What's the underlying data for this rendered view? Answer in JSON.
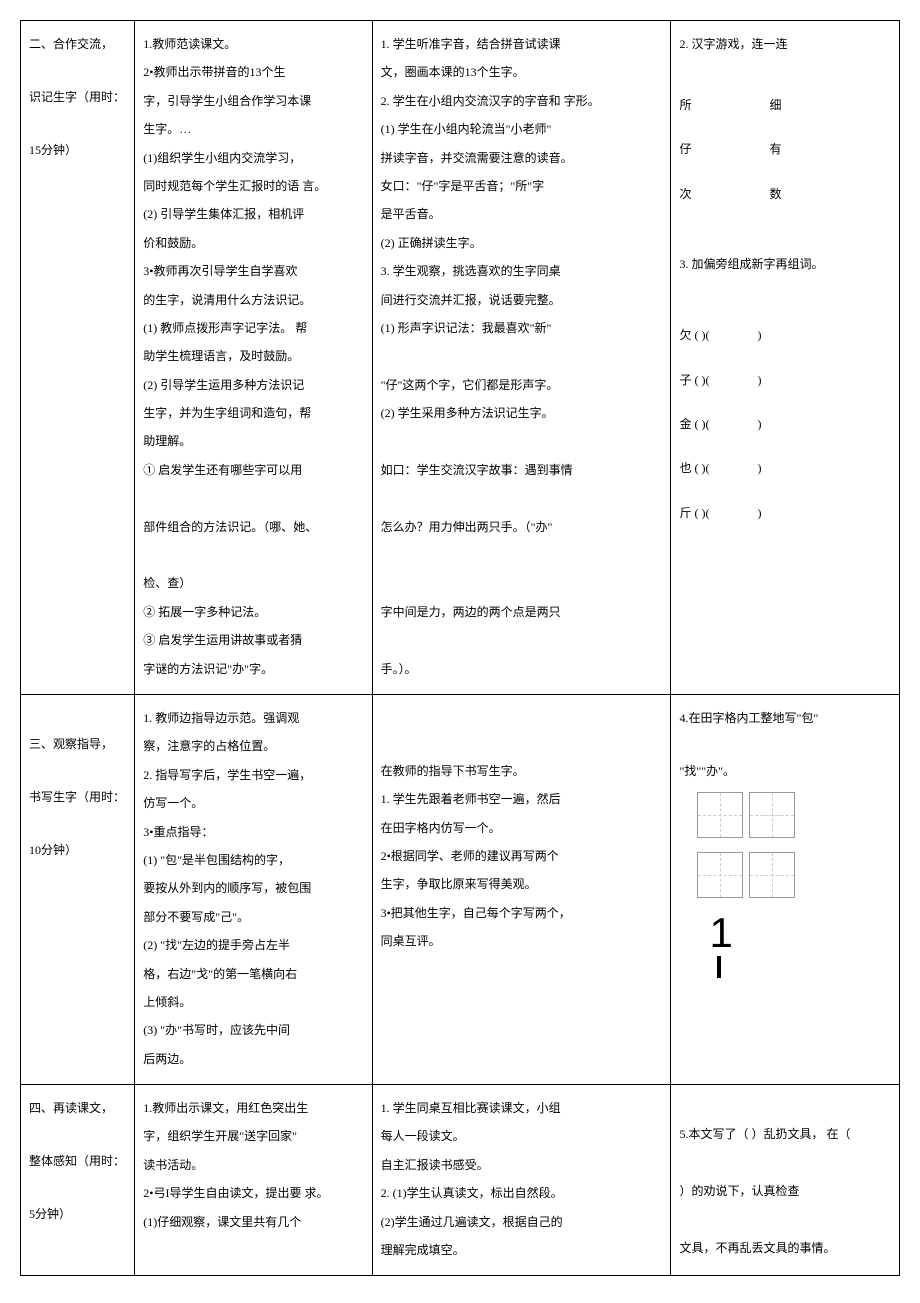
{
  "row1": {
    "col1_l1": "二、合作交流，",
    "col1_l2": "识记生字（用时：",
    "col1_l3": "15分钟）",
    "col2": [
      "1.教师范读课文。",
      "2•教师出示带拼音的13个生",
      "字，引导学生小组合作学习本课",
      "生字。…",
      "(1)组织学生小组内交流学习，",
      "同时规范每个学生汇报时的语 言。",
      "(2) 引导学生集体汇报，相机评",
      "价和鼓励。",
      "3•教师再次引导学生自学喜欢",
      "的生字，说清用什么方法识记。",
      "(1) 教师点拨形声字记字法。 帮",
      "助学生梳理语言，及时鼓励。",
      "(2) 引导学生运用多种方法识记",
      "生字，并为生字组词和造句，帮",
      "助理解。",
      "① 启发学生还有哪些字可以用",
      "",
      "部件组合的方法识记。（哪、她、",
      "",
      "检、查）",
      "② 拓展一字多种记法。",
      "③ 启发学生运用讲故事或者猜",
      "字谜的方法识记\"办\"字。"
    ],
    "col3": [
      "1. 学生听准字音，结合拼音试读课",
      "文，圈画本课的13个生字。",
      "2. 学生在小组内交流汉字的字音和 字形。",
      "(1) 学生在小组内轮流当\"小老师\"",
      "拼读字音，并交流需要注意的读音。",
      "女口：\"仔\"字是平舌音；\"所\"字",
      "是平舌音。",
      "(2) 正确拼读生字。",
      "3. 学生观察，挑选喜欢的生字同桌",
      "间进行交流并汇报，说话要完整。",
      "(1) 形声字识记法：我最喜欢\"新\"",
      "",
      "\"仔\"这两个字，它们都是形声字。",
      "(2) 学生采用多种方法识记生字。",
      "",
      "如口：学生交流汉字故事：遇到事情",
      "",
      "怎么办？用力伸出两只手。（\"办\"",
      "",
      "",
      "字中间是力，两边的两个点是两只",
      "",
      "手。）。"
    ],
    "col4_head": "2. 汉字游戏，连一连",
    "pairs": [
      [
        "所",
        "细"
      ],
      [
        "仔",
        "有"
      ],
      [
        "次",
        "数"
      ]
    ],
    "col4_mid": "3. 加偏旁组成新字再组词。",
    "blanks": [
      "欠",
      "子",
      "金",
      "也",
      "斤"
    ]
  },
  "row2": {
    "col1_l1": "三、观察指导，",
    "col1_l2": "书写生字（用时：",
    "col1_l3": "10分钟）",
    "col2": [
      "1. 教师边指导边示范。强调观",
      "察，注意字的占格位置。",
      "2. 指导写字后，学生书空一遍，",
      "仿写一个。",
      "3•重点指导：",
      "(1)  \"包\"是半包围结构的字，",
      "要按从外到内的顺序写，被包围",
      "部分不要写成\"己\"。",
      "(2)  \"找\"左边的提手旁占左半",
      "格，右边\"戈\"的第一笔横向右",
      "上倾斜。",
      "(3)  \"办\"书写时，应该先中间",
      "后两边。"
    ],
    "col3": [
      "在教师的指导下书写生字。",
      "1. 学生先跟着老师书空一遍，然后",
      "在田字格内仿写一个。",
      "2•根据同学、老师的建议再写两个",
      "生字，争取比原来写得美观。",
      "3•把其他生字，自己每个字写两个，",
      "同桌互评。"
    ],
    "col4_l1": "4.在田字格内工整地写\"包\"",
    "col4_l2": "\"找\"\"办\"。"
  },
  "row3": {
    "col1_l1": "四、再读课文，",
    "col1_l2": "整体感知（用时：",
    "col1_l3": "5分钟）",
    "col2": [
      "1.教师出示课文，用红色突出生",
      "字，组织学生开展\"送字回家\"",
      "读书活动。",
      "2•弓I导学生自由读文，提出要 求。",
      "(1)仔细观察，课文里共有几个"
    ],
    "col3": [
      "1. 学生同桌互相比赛读课文，小组",
      "每人一段读文。",
      "自主汇报读书感受。",
      "2. (1)学生认真读文，标出自然段。",
      "(2)学生通过几遍读文，根据自己的",
      "理解完成填空。"
    ],
    "col4": [
      "5.本文写了（ ）乱扔文具，   在（",
      "",
      "）的劝说下，认真检查",
      "",
      "文具，不再乱丢文具的事情。"
    ]
  }
}
